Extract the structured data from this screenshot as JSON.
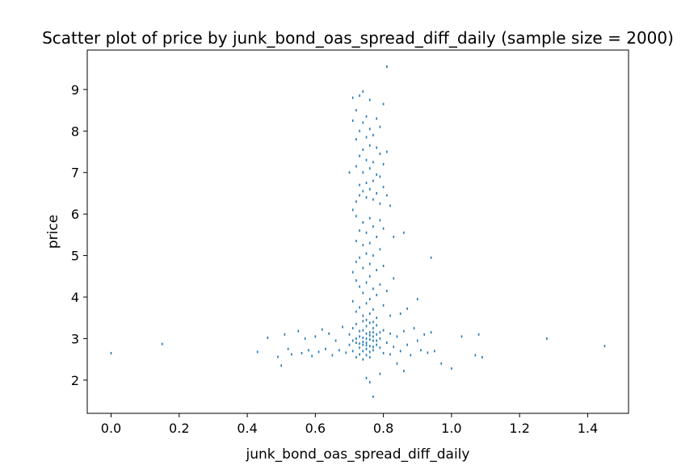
{
  "chart_data": {
    "type": "scatter",
    "title": "Scatter plot of price by junk_bond_oas_spread_diff_daily (sample size = 2000)",
    "xlabel": "junk_bond_oas_spread_diff_daily",
    "ylabel": "price",
    "xlim": [
      -0.07,
      1.52
    ],
    "ylim": [
      1.2,
      9.95
    ],
    "xticks": [
      0.0,
      0.2,
      0.4,
      0.6,
      0.8,
      1.0,
      1.2,
      1.4
    ],
    "xtick_labels": [
      "0.0",
      "0.2",
      "0.4",
      "0.6",
      "0.8",
      "1.0",
      "1.2",
      "1.4"
    ],
    "yticks": [
      2,
      3,
      4,
      5,
      6,
      7,
      8,
      9
    ],
    "ytick_labels": [
      "2",
      "3",
      "4",
      "5",
      "6",
      "7",
      "8",
      "9"
    ],
    "grid": false,
    "marker_color": "#1f77b4",
    "points": [
      [
        0.0,
        2.65
      ],
      [
        0.15,
        2.87
      ],
      [
        0.43,
        2.68
      ],
      [
        0.46,
        3.02
      ],
      [
        0.49,
        2.56
      ],
      [
        0.5,
        2.35
      ],
      [
        0.51,
        3.1
      ],
      [
        0.52,
        2.75
      ],
      [
        0.53,
        2.62
      ],
      [
        0.55,
        3.18
      ],
      [
        0.56,
        2.65
      ],
      [
        0.57,
        3.0
      ],
      [
        0.58,
        2.72
      ],
      [
        0.59,
        2.58
      ],
      [
        0.6,
        3.05
      ],
      [
        0.61,
        2.68
      ],
      [
        0.62,
        3.22
      ],
      [
        0.63,
        2.75
      ],
      [
        0.64,
        3.12
      ],
      [
        0.65,
        2.6
      ],
      [
        0.66,
        2.95
      ],
      [
        0.67,
        2.72
      ],
      [
        0.68,
        3.28
      ],
      [
        0.69,
        2.66
      ],
      [
        0.7,
        2.85
      ],
      [
        0.7,
        3.1
      ],
      [
        0.71,
        2.7
      ],
      [
        0.71,
        3.25
      ],
      [
        0.72,
        2.9
      ],
      [
        0.72,
        2.55
      ],
      [
        0.72,
        3.35
      ],
      [
        0.73,
        2.78
      ],
      [
        0.73,
        3.05
      ],
      [
        0.73,
        2.62
      ],
      [
        0.74,
        3.2
      ],
      [
        0.74,
        2.85
      ],
      [
        0.74,
        3.42
      ],
      [
        0.74,
        2.7
      ],
      [
        0.75,
        3.0
      ],
      [
        0.75,
        2.9
      ],
      [
        0.75,
        3.3
      ],
      [
        0.75,
        2.75
      ],
      [
        0.75,
        2.6
      ],
      [
        0.76,
        3.15
      ],
      [
        0.76,
        2.82
      ],
      [
        0.76,
        3.38
      ],
      [
        0.76,
        2.68
      ],
      [
        0.77,
        3.05
      ],
      [
        0.77,
        2.95
      ],
      [
        0.77,
        3.25
      ],
      [
        0.77,
        2.72
      ],
      [
        0.78,
        3.1
      ],
      [
        0.78,
        2.85
      ],
      [
        0.78,
        3.32
      ],
      [
        0.79,
        2.78
      ],
      [
        0.79,
        3.0
      ],
      [
        0.8,
        2.65
      ],
      [
        0.8,
        3.2
      ],
      [
        0.81,
        2.9
      ],
      [
        0.82,
        3.12
      ],
      [
        0.82,
        2.62
      ],
      [
        0.83,
        2.8
      ],
      [
        0.84,
        3.05
      ],
      [
        0.85,
        2.7
      ],
      [
        0.86,
        3.18
      ],
      [
        0.87,
        2.85
      ],
      [
        0.88,
        2.6
      ],
      [
        0.89,
        3.25
      ],
      [
        0.9,
        2.95
      ],
      [
        0.91,
        2.72
      ],
      [
        0.92,
        3.1
      ],
      [
        0.93,
        2.66
      ],
      [
        0.94,
        3.15
      ],
      [
        0.95,
        2.7
      ],
      [
        0.73,
        2.88
      ],
      [
        0.74,
        2.92
      ],
      [
        0.75,
        2.84
      ],
      [
        0.76,
        2.98
      ],
      [
        0.77,
        2.8
      ],
      [
        0.75,
        3.12
      ],
      [
        0.76,
        3.08
      ],
      [
        0.74,
        3.02
      ],
      [
        0.73,
        3.18
      ],
      [
        0.77,
        3.15
      ],
      [
        0.78,
        2.95
      ],
      [
        0.72,
        3.0
      ],
      [
        0.71,
        2.95
      ],
      [
        0.79,
        3.15
      ],
      [
        0.76,
        2.55
      ],
      [
        0.75,
        3.45
      ],
      [
        0.74,
        2.5
      ],
      [
        0.77,
        3.4
      ],
      [
        0.75,
        2.05
      ],
      [
        0.76,
        1.95
      ],
      [
        0.77,
        1.6
      ],
      [
        0.79,
        2.15
      ],
      [
        0.84,
        2.4
      ],
      [
        0.86,
        2.22
      ],
      [
        0.97,
        2.4
      ],
      [
        1.0,
        2.28
      ],
      [
        1.07,
        2.6
      ],
      [
        1.09,
        2.55
      ],
      [
        1.03,
        3.05
      ],
      [
        1.08,
        3.1
      ],
      [
        1.28,
        3.0
      ],
      [
        1.45,
        2.82
      ],
      [
        0.74,
        3.55
      ],
      [
        0.76,
        3.6
      ],
      [
        0.73,
        3.75
      ],
      [
        0.77,
        3.7
      ],
      [
        0.75,
        3.85
      ],
      [
        0.78,
        3.5
      ],
      [
        0.72,
        3.65
      ],
      [
        0.8,
        3.8
      ],
      [
        0.82,
        3.55
      ],
      [
        0.85,
        3.6
      ],
      [
        0.87,
        3.72
      ],
      [
        0.9,
        3.95
      ],
      [
        0.71,
        3.9
      ],
      [
        0.76,
        3.95
      ],
      [
        0.74,
        4.1
      ],
      [
        0.78,
        4.05
      ],
      [
        0.73,
        4.25
      ],
      [
        0.77,
        4.2
      ],
      [
        0.75,
        4.35
      ],
      [
        0.79,
        4.3
      ],
      [
        0.72,
        4.4
      ],
      [
        0.81,
        4.15
      ],
      [
        0.83,
        4.45
      ],
      [
        0.76,
        4.5
      ],
      [
        0.71,
        4.6
      ],
      [
        0.74,
        4.7
      ],
      [
        0.78,
        4.65
      ],
      [
        0.72,
        4.85
      ],
      [
        0.76,
        4.8
      ],
      [
        0.8,
        4.75
      ],
      [
        0.73,
        4.95
      ],
      [
        0.75,
        5.05
      ],
      [
        0.77,
        5.0
      ],
      [
        0.79,
        5.15
      ],
      [
        0.74,
        5.25
      ],
      [
        0.72,
        5.35
      ],
      [
        0.76,
        5.3
      ],
      [
        0.78,
        5.45
      ],
      [
        0.75,
        5.55
      ],
      [
        0.73,
        5.6
      ],
      [
        0.77,
        5.7
      ],
      [
        0.8,
        5.65
      ],
      [
        0.74,
        5.8
      ],
      [
        0.76,
        5.9
      ],
      [
        0.79,
        5.85
      ],
      [
        0.72,
        5.95
      ],
      [
        0.86,
        5.55
      ],
      [
        0.94,
        4.95
      ],
      [
        0.83,
        5.45
      ],
      [
        0.71,
        6.1
      ],
      [
        0.72,
        6.3
      ],
      [
        0.73,
        6.45
      ],
      [
        0.74,
        6.55
      ],
      [
        0.75,
        6.4
      ],
      [
        0.76,
        6.6
      ],
      [
        0.77,
        6.35
      ],
      [
        0.78,
        6.5
      ],
      [
        0.79,
        6.25
      ],
      [
        0.8,
        6.65
      ],
      [
        0.81,
        6.45
      ],
      [
        0.82,
        6.2
      ],
      [
        0.73,
        6.7
      ],
      [
        0.75,
        6.75
      ],
      [
        0.77,
        6.8
      ],
      [
        0.79,
        6.9
      ],
      [
        0.74,
        7.0
      ],
      [
        0.76,
        7.1
      ],
      [
        0.78,
        6.95
      ],
      [
        0.8,
        7.2
      ],
      [
        0.72,
        7.15
      ],
      [
        0.7,
        7.0
      ],
      [
        0.75,
        7.3
      ],
      [
        0.77,
        7.25
      ],
      [
        0.73,
        7.4
      ],
      [
        0.79,
        7.45
      ],
      [
        0.74,
        7.55
      ],
      [
        0.76,
        7.65
      ],
      [
        0.78,
        7.6
      ],
      [
        0.81,
        7.5
      ],
      [
        0.72,
        7.8
      ],
      [
        0.75,
        7.85
      ],
      [
        0.77,
        7.9
      ],
      [
        0.73,
        8.0
      ],
      [
        0.76,
        8.05
      ],
      [
        0.79,
        8.1
      ],
      [
        0.74,
        8.2
      ],
      [
        0.71,
        8.25
      ],
      [
        0.78,
        8.3
      ],
      [
        0.75,
        8.35
      ],
      [
        0.72,
        8.5
      ],
      [
        0.8,
        8.65
      ],
      [
        0.76,
        8.75
      ],
      [
        0.73,
        8.85
      ],
      [
        0.74,
        8.95
      ],
      [
        0.71,
        8.8
      ],
      [
        0.81,
        9.55
      ]
    ]
  }
}
